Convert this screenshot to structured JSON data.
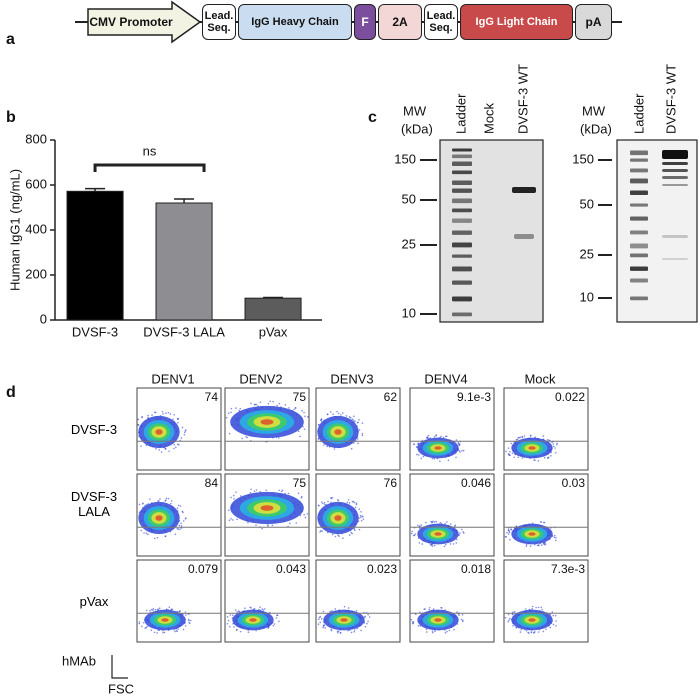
{
  "panel_a": {
    "label": "a",
    "segments": [
      "CMV Promoter",
      "Lead. Seq.",
      "IgG Heavy Chain",
      "F",
      "2A",
      "Lead. Seq.",
      "IgG Light Chain",
      "pA"
    ]
  },
  "chart_data": {
    "type": "bar",
    "panel_label": "b",
    "y_label": "Human IgG1 (ng/mL)",
    "categories": [
      "DVSF-3",
      "DVSF-3 LALA",
      "pVax"
    ],
    "values": [
      572,
      520,
      97
    ],
    "errors": [
      12,
      18,
      3
    ],
    "colors": [
      "#000000",
      "#8e8e92",
      "#5c5c5c"
    ],
    "ylim": [
      0,
      800
    ],
    "yticks": [
      0,
      200,
      400,
      600,
      800
    ],
    "annotation": "ns"
  },
  "panel_c": {
    "label": "c",
    "blots": [
      {
        "mw_label": [
          "MW",
          "(kDa)"
        ],
        "lanes": [
          "Ladder",
          "Mock",
          "DVSF-3 WT"
        ],
        "markers": [
          "150",
          "50",
          "25",
          "10"
        ]
      },
      {
        "mw_label": [
          "MW",
          "(kDa)"
        ],
        "lanes": [
          "Ladder",
          "DVSF-3 WT"
        ],
        "markers": [
          "150",
          "50",
          "25",
          "10"
        ]
      }
    ]
  },
  "panel_d": {
    "label": "d",
    "columns": [
      "DENV1",
      "DENV2",
      "DENV3",
      "DENV4",
      "Mock"
    ],
    "rows": [
      {
        "label": "DVSF-3",
        "values": [
          "74",
          "75",
          "62",
          "9.1e-3",
          "0.022"
        ]
      },
      {
        "label": "DVSF-3 LALA",
        "values": [
          "84",
          "75",
          "76",
          "0.046",
          "0.03"
        ]
      },
      {
        "label": "pVax",
        "values": [
          "0.079",
          "0.043",
          "0.023",
          "0.018",
          "7.3e-3"
        ]
      }
    ],
    "y_axis": "hMAb",
    "x_axis": "FSC"
  }
}
